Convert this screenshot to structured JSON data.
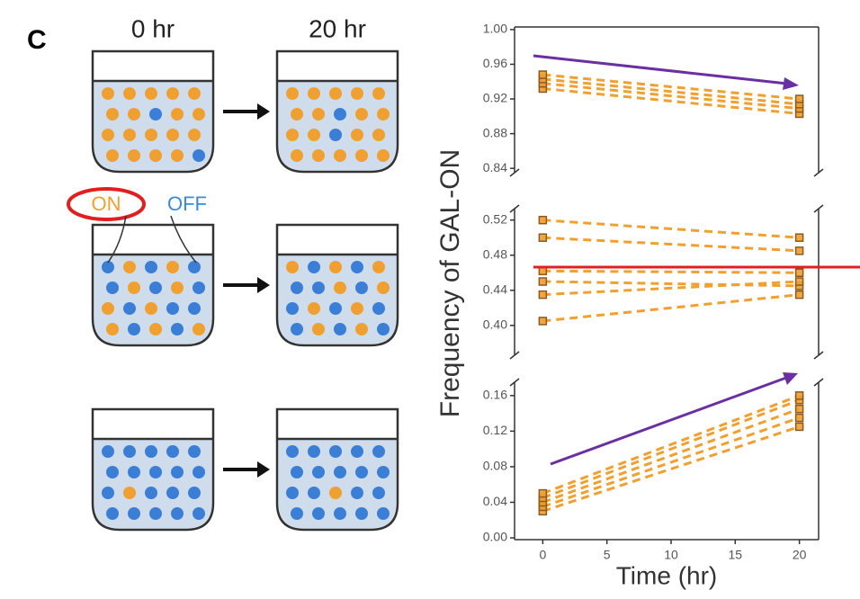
{
  "panel_label": "C",
  "diagram": {
    "time_labels": [
      "0 hr",
      "20 hr"
    ],
    "states": [
      "ON",
      "OFF"
    ]
  },
  "chart_data": [
    {
      "type": "line",
      "x": [
        0,
        20
      ],
      "ylim": [
        0.835,
        1.003
      ],
      "xlim": [
        -2.2,
        21.5
      ],
      "yticks": [
        0.84,
        0.88,
        0.92,
        0.96,
        {
          "value": 1,
          "label": "1.00"
        }
      ],
      "series": [
        {
          "color": "#f0a030",
          "values": [
            0.932,
            0.903
          ]
        },
        {
          "color": "#f0a030",
          "values": [
            0.938,
            0.909
          ]
        },
        {
          "color": "#f0a030",
          "values": [
            0.943,
            0.914
          ]
        },
        {
          "color": "#f0a030",
          "values": [
            0.948,
            0.92
          ]
        }
      ]
    },
    {
      "type": "line",
      "x": [
        0,
        20
      ],
      "ylim": [
        0.366,
        0.533
      ],
      "xlim": [
        -2.2,
        21.5
      ],
      "ylabel": "Frequency of GAL-ON",
      "yticks": [
        {
          "value": 0.4,
          "label": "0.40"
        },
        0.44,
        0.48,
        0.52
      ],
      "series": [
        {
          "color": "#f0a030",
          "values": [
            0.52,
            0.5
          ]
        },
        {
          "color": "#f0a030",
          "values": [
            0.5,
            0.485
          ]
        },
        {
          "color": "#f0a030",
          "values": [
            0.462,
            0.46
          ]
        },
        {
          "color": "#f0a030",
          "values": [
            0.45,
            0.445
          ]
        },
        {
          "color": "#f0a030",
          "values": [
            0.435,
            0.45
          ]
        },
        {
          "color": "#f0a030",
          "values": [
            0.405,
            0.435
          ]
        }
      ]
    },
    {
      "type": "line",
      "x": [
        0,
        20
      ],
      "ylim": [
        -0.002,
        0.175
      ],
      "xlim": [
        -2.2,
        21.5
      ],
      "xlabel": "Time (hr)",
      "yticks": [
        {
          "value": 0,
          "label": "0.00"
        },
        0.04,
        0.08,
        0.12,
        0.16
      ],
      "xticks": [
        0,
        5,
        10,
        15,
        20
      ],
      "series": [
        {
          "color": "#f0a030",
          "values": [
            0.03,
            0.125
          ]
        },
        {
          "color": "#f0a030",
          "values": [
            0.035,
            0.135
          ]
        },
        {
          "color": "#f0a030",
          "values": [
            0.04,
            0.145
          ]
        },
        {
          "color": "#f0a030",
          "values": [
            0.045,
            0.155
          ]
        },
        {
          "color": "#f0a030",
          "values": [
            0.05,
            0.16
          ]
        }
      ]
    }
  ]
}
